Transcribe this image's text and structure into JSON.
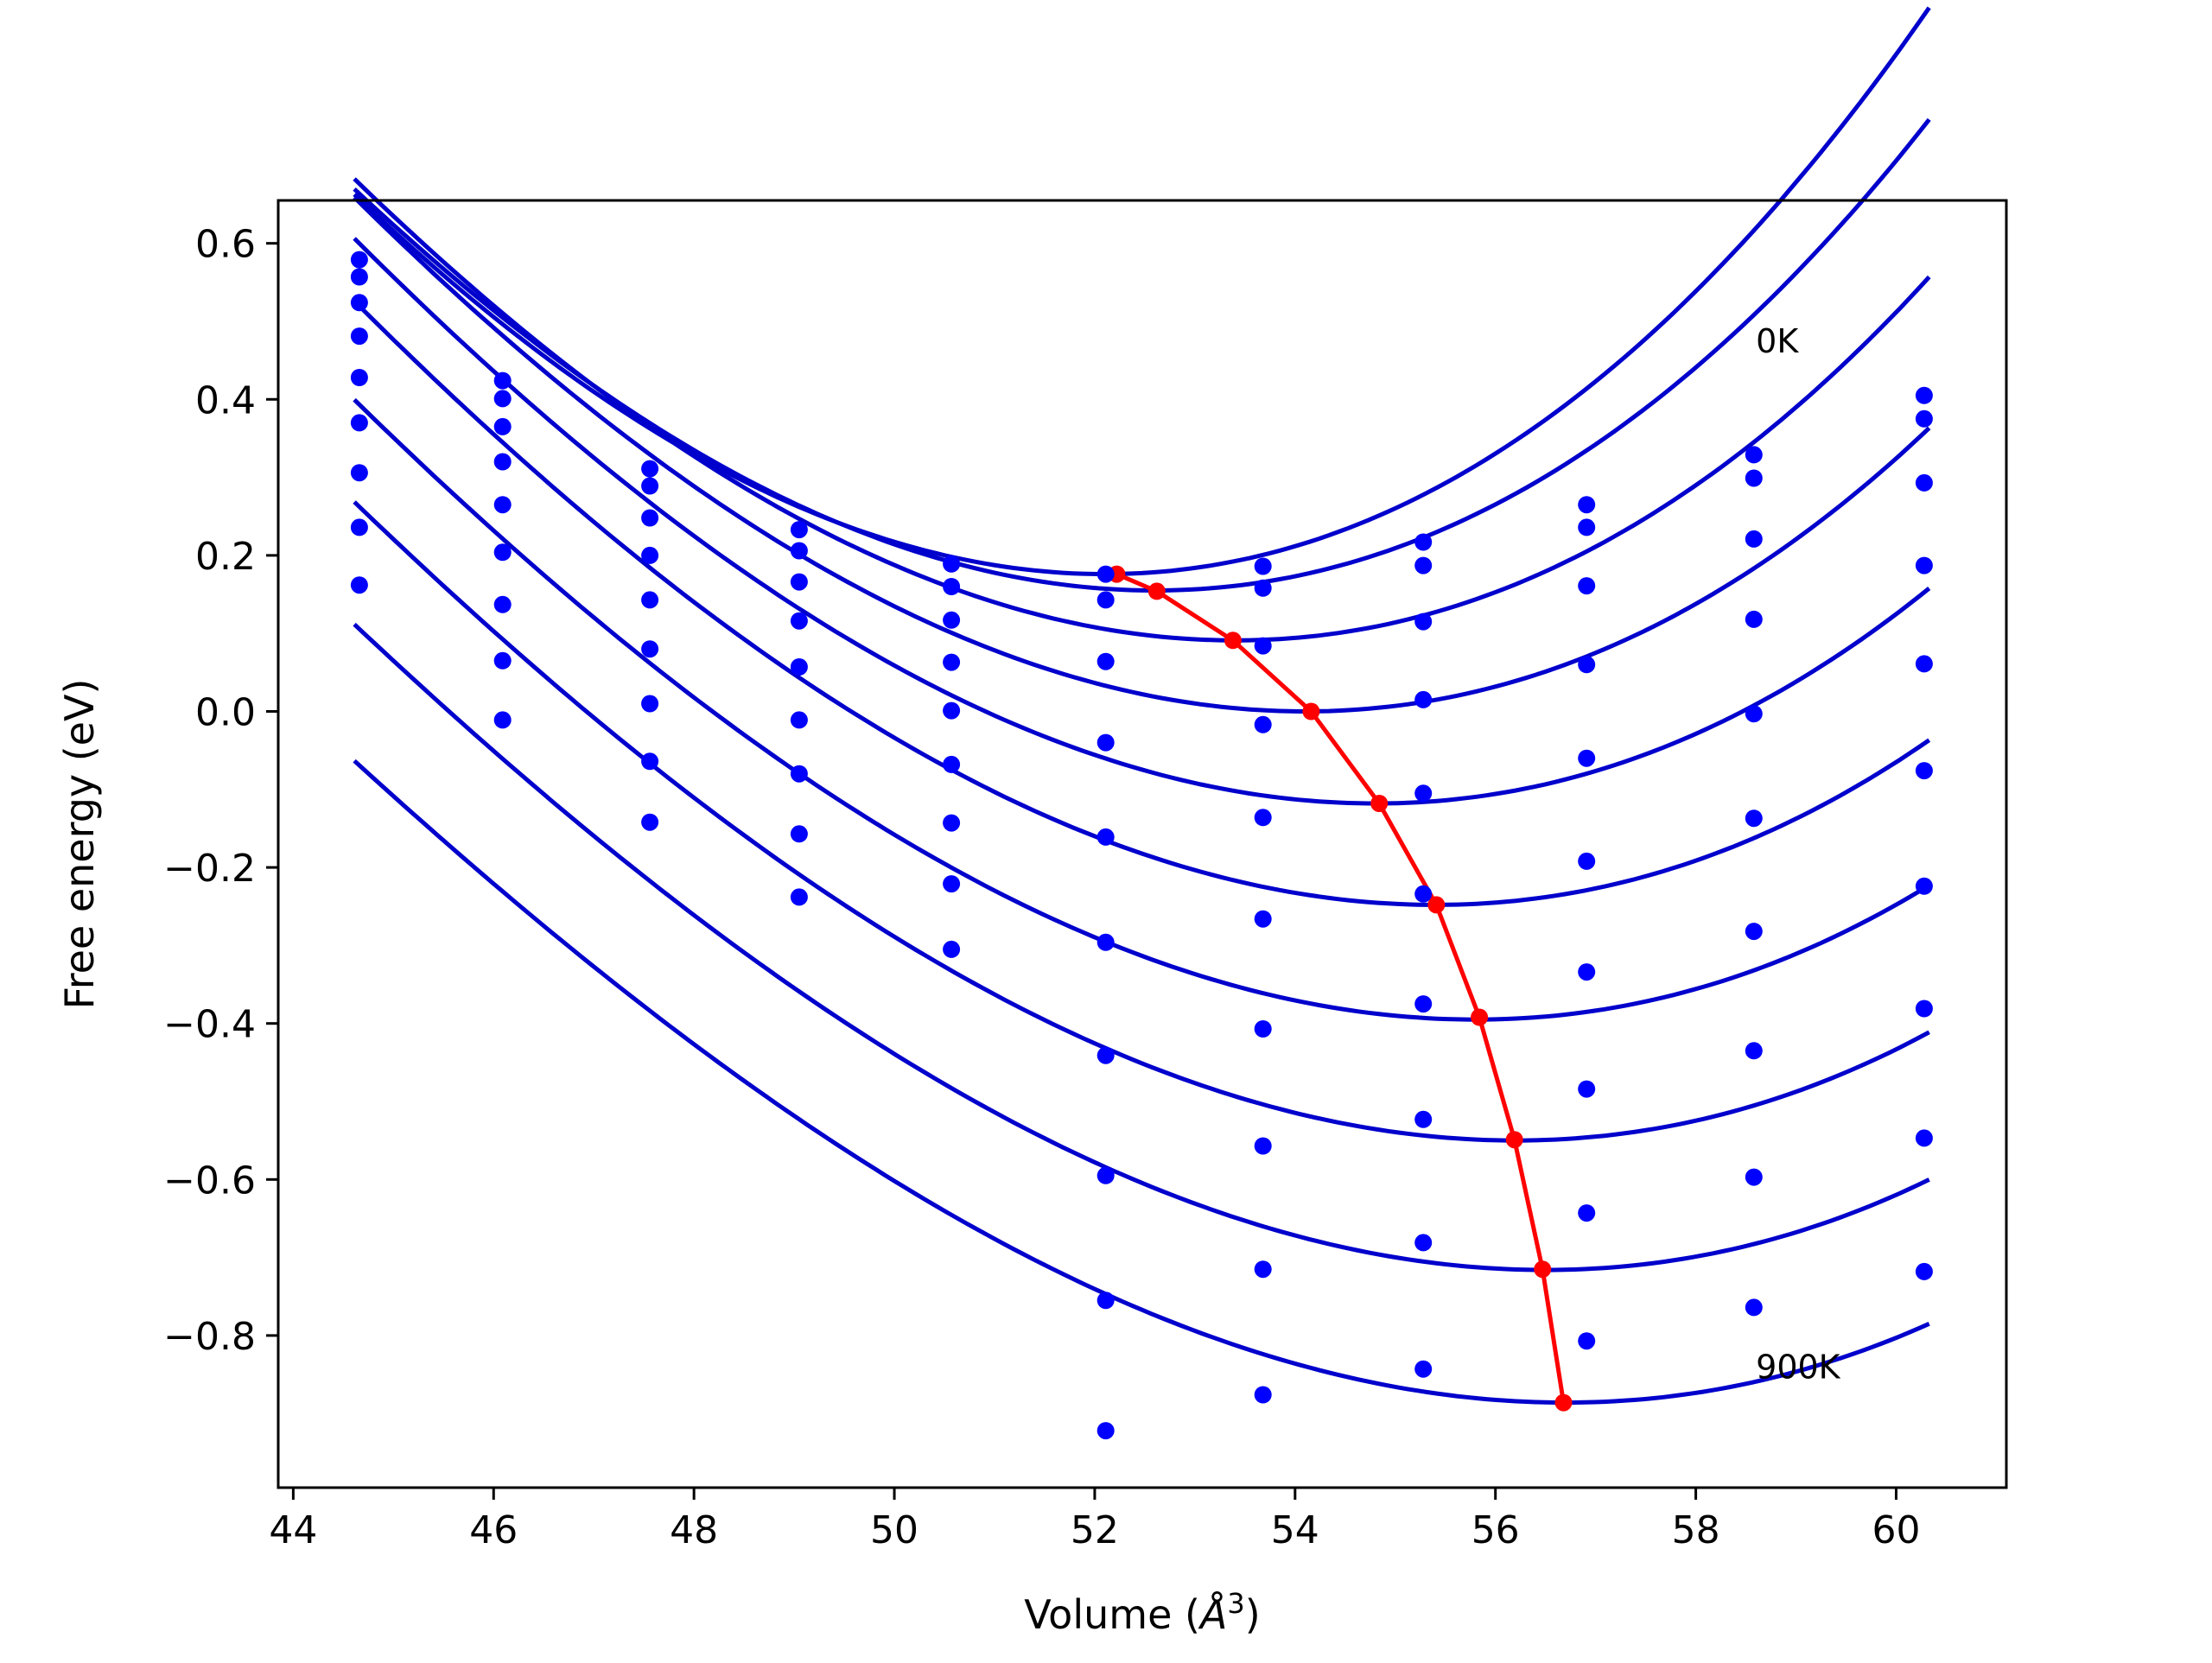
{
  "chart_data": {
    "type": "scatter",
    "title": "",
    "xlabel": "Volume (Å³)",
    "xlabel_main": "Volume (",
    "xlabel_unit": "Å",
    "xlabel_exp": "3",
    "xlabel_close": ")",
    "ylabel": "Free energy (eV)",
    "xlim": [
      43.85,
      61.1
    ],
    "ylim": [
      -0.995,
      0.655
    ],
    "xticks": [
      44,
      46,
      48,
      50,
      52,
      54,
      56,
      58,
      60
    ],
    "xtick_labels": [
      "44",
      "46",
      "48",
      "50",
      "52",
      "54",
      "56",
      "58",
      "60"
    ],
    "yticks": [
      0.6,
      0.4,
      0.2,
      0.0,
      -0.2,
      -0.4,
      -0.6,
      -0.8
    ],
    "ytick_labels": [
      "0.6",
      "0.4",
      "0.2",
      "0.0",
      "−0.2",
      "−0.4",
      "−0.6",
      "−0.8"
    ],
    "grid": false,
    "annotations": [
      {
        "text": "0K",
        "x": 58.6,
        "y": 0.46
      },
      {
        "text": "900K",
        "x": 58.6,
        "y": -0.855
      }
    ],
    "colors": {
      "data": "#0000ff",
      "fit": "#0000cc",
      "min_line": "#ff0000"
    },
    "volumes": [
      44.66,
      46.09,
      47.56,
      49.05,
      50.57,
      52.11,
      53.68,
      55.28,
      56.91,
      58.58,
      60.28
    ],
    "series": [
      {
        "y": [
          0.579,
          0.424,
          0.311,
          0.233,
          0.189,
          0.176,
          0.186,
          0.217,
          0.265,
          0.329,
          0.405
        ],
        "fit": {
          "v0": 52.1,
          "e0": 0.176,
          "a": 0.00965,
          "b": 0.00013
        }
      },
      {
        "y": [
          0.557,
          0.401,
          0.289,
          0.206,
          0.16,
          0.143,
          0.158,
          0.187,
          0.236,
          0.299,
          0.375
        ],
        "fit": {
          "v0": 52.6,
          "e0": 0.155,
          "a": 0.0091,
          "b": 0.00013
        }
      },
      {
        "y": [
          0.524,
          0.365,
          0.248,
          0.166,
          0.117,
          0.064,
          0.084,
          0.115,
          0.161,
          0.221,
          0.293
        ],
        "fit": {
          "v0": 53.4,
          "e0": 0.091,
          "a": 0.0088,
          "b": 0.00013
        }
      },
      {
        "y": [
          0.481,
          0.32,
          0.2,
          0.116,
          0.063,
          -0.04,
          -0.017,
          0.015,
          0.06,
          0.118,
          0.187
        ],
        "fit": {
          "v0": 54.1,
          "e0": 0.0,
          "a": 0.00855,
          "b": 0.00013
        }
      },
      {
        "y": [
          0.428,
          0.265,
          0.143,
          0.057,
          0.001,
          -0.161,
          -0.136,
          -0.105,
          -0.06,
          -0.003,
          0.061
        ],
        "fit": {
          "v0": 54.8,
          "e0": -0.118,
          "a": 0.0083,
          "b": 0.00013
        }
      },
      {
        "y": [
          0.37,
          0.204,
          0.08,
          -0.011,
          -0.068,
          -0.296,
          -0.266,
          -0.234,
          -0.192,
          -0.137,
          -0.076
        ],
        "fit": {
          "v0": 55.4,
          "e0": -0.248,
          "a": 0.00805,
          "b": 0.00013
        }
      },
      {
        "y": [
          0.306,
          0.137,
          0.01,
          -0.08,
          -0.143,
          -0.441,
          -0.407,
          -0.375,
          -0.334,
          -0.282,
          -0.224
        ],
        "fit": {
          "v0": 55.8,
          "e0": -0.395,
          "a": 0.0078,
          "b": 0.00013
        }
      },
      {
        "y": [
          0.236,
          0.065,
          -0.064,
          -0.157,
          -0.221,
          -0.595,
          -0.557,
          -0.523,
          -0.484,
          -0.435,
          -0.381
        ],
        "fit": {
          "v0": 56.2,
          "e0": -0.55,
          "a": 0.0076,
          "b": 0.00013
        }
      },
      {
        "y": [
          0.162,
          -0.011,
          -0.142,
          -0.238,
          -0.305,
          -0.755,
          -0.715,
          -0.681,
          -0.643,
          -0.597,
          -0.547
        ],
        "fit": {
          "v0": 56.5,
          "e0": -0.716,
          "a": 0.0074,
          "b": 0.00013
        }
      },
      {
        "y": [
          null,
          null,
          null,
          null,
          null,
          -0.922,
          -0.876,
          -0.843,
          -0.807,
          -0.764,
          -0.718
        ],
        "fit": {
          "v0": 56.7,
          "e0": -0.886,
          "a": 0.0072,
          "b": 0.00013
        }
      }
    ],
    "minima_line": {
      "x": [
        52.22,
        52.62,
        53.38,
        54.16,
        54.84,
        55.41,
        55.84,
        56.19,
        56.47,
        56.68
      ],
      "y": [
        0.176,
        0.154,
        0.091,
        0.0,
        -0.118,
        -0.248,
        -0.392,
        -0.549,
        -0.715,
        -0.886
      ]
    }
  }
}
